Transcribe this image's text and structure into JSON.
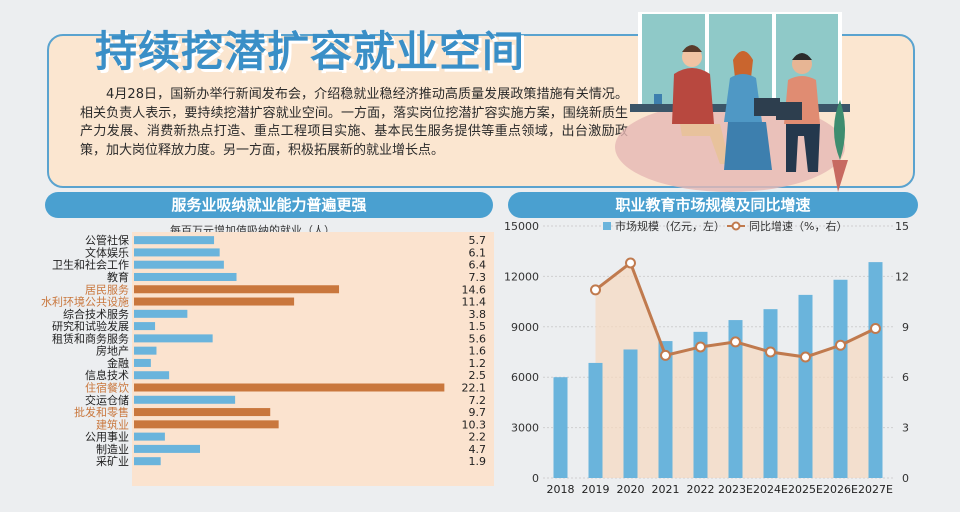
{
  "header": {
    "headline": "持续挖潜扩容就业空间",
    "intro": "4月28日，国新办举行新闻发布会，介绍稳就业稳经济推动高质量发展政策措施有关情况。相关负责人表示，要持续挖潜扩容就业空间。一方面，落实岗位挖潜扩容实施方案，围绕新质生产力发展、消费新热点打造、重点工程项目实施、基本民生服务提供等重点领域，出台激励政策，加大岗位释放力度。另一方面，积极拓展新的就业增长点。"
  },
  "left_panel": {
    "title": "服务业吸纳就业能力普遍更强"
  },
  "right_panel": {
    "title": "职业教育市场规模及同比增速"
  },
  "colors": {
    "bar_blue": "#6ab4dc",
    "bar_orange": "#c9773d",
    "label_orange": "#c9773d",
    "line_brown": "#c07a4e",
    "accent_blue": "#4aa0d0"
  },
  "chart_data": [
    {
      "type": "bar",
      "orientation": "horizontal",
      "subtitle": "每百万元增加值吸纳的就业（人）",
      "categories": [
        "公管社保",
        "文体娱乐",
        "卫生和社会工作",
        "教育",
        "居民服务",
        "水利环境公共设施",
        "综合技术服务",
        "研究和试验发展",
        "租赁和商务服务",
        "房地产",
        "金融",
        "信息技术",
        "住宿餐饮",
        "交运仓储",
        "批发和零售",
        "建筑业",
        "公用事业",
        "制造业",
        "采矿业"
      ],
      "values": [
        5.7,
        6.1,
        6.4,
        7.3,
        14.6,
        11.4,
        3.8,
        1.5,
        5.6,
        1.6,
        1.2,
        2.5,
        22.1,
        7.2,
        9.7,
        10.3,
        2.2,
        4.7,
        1.9
      ],
      "value_labels": [
        "5.7",
        "6.1",
        "6.4",
        "7.3",
        "14.6",
        "11.4",
        "3.8",
        "1.5",
        "5.6",
        "1.6",
        "1.2",
        "2.5",
        "22.1",
        "7.2",
        "9.7",
        "10.3",
        "2.2",
        "4.7",
        "1.9"
      ],
      "highlighted": [
        "居民服务",
        "水利环境公共设施",
        "住宿餐饮",
        "批发和零售",
        "建筑业"
      ],
      "xlim": [
        0,
        23
      ]
    },
    {
      "type": "bar+line",
      "categories": [
        "2018",
        "2019",
        "2020",
        "2021",
        "2022",
        "2023E",
        "2024E",
        "2025E",
        "2026E",
        "2027E"
      ],
      "series": [
        {
          "name": "市场规模（亿元，左）",
          "type": "bar",
          "axis": "left",
          "values": [
            6000,
            6850,
            7650,
            8150,
            8700,
            9400,
            10050,
            10900,
            11800,
            12850
          ]
        },
        {
          "name": "同比增速（%，右）",
          "type": "line",
          "axis": "right",
          "values": [
            null,
            11.2,
            12.8,
            7.3,
            7.8,
            8.1,
            7.5,
            7.2,
            7.9,
            8.9
          ]
        }
      ],
      "left_axis": {
        "ylim": [
          0,
          15000
        ],
        "ticks": [
          "0",
          "3000",
          "6000",
          "9000",
          "12000",
          "15000"
        ]
      },
      "right_axis": {
        "ylim": [
          0,
          15
        ],
        "ticks": [
          "0",
          "3",
          "6",
          "9",
          "12",
          "15"
        ]
      },
      "legend": "top",
      "grid": true
    }
  ]
}
